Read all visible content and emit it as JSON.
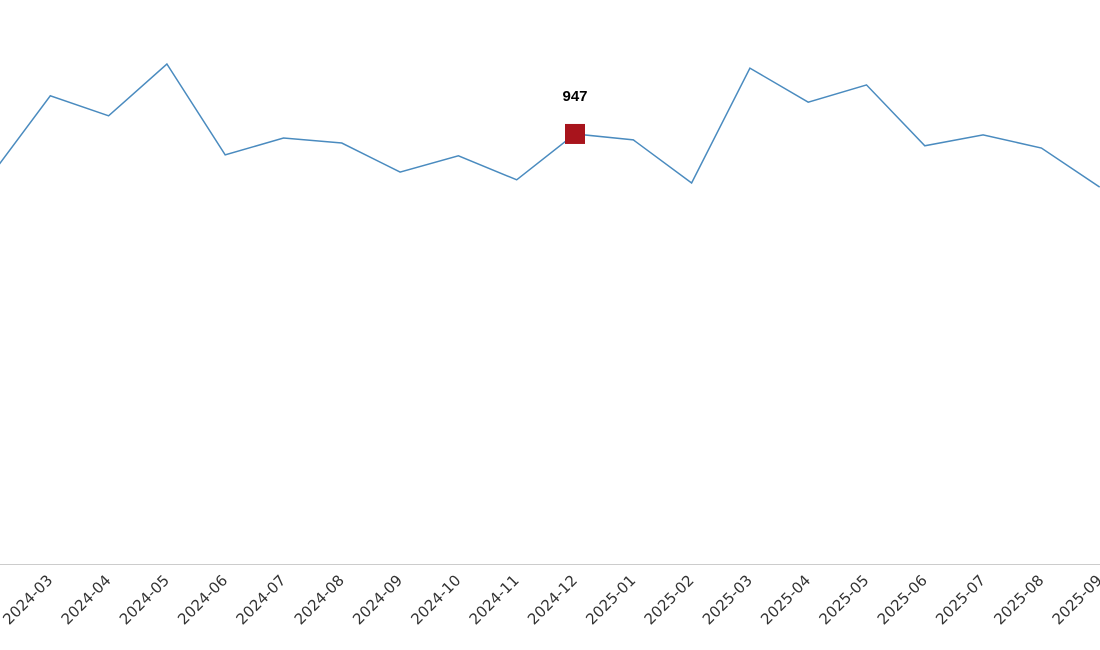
{
  "chart_data": {
    "type": "line",
    "categories": [
      null,
      "2024-03",
      "2024-04",
      "2024-05",
      "2024-06",
      "2024-07",
      "2024-08",
      "2024-09",
      "2024-10",
      "2024-11",
      "2024-12",
      "2025-01",
      "2025-02",
      "2025-03",
      "2025-04",
      "2025-05",
      "2025-06",
      "2025-07",
      "2025-08",
      "2025-09"
    ],
    "values": [
      859,
      1031,
      987,
      1101,
      901,
      938,
      927,
      863,
      899,
      846,
      947,
      934,
      839,
      1092,
      1017,
      1055,
      921,
      945,
      916,
      830
    ],
    "color": "#4a8bbf",
    "highlight_category": "2024-12",
    "highlight_color": "#a8141c",
    "ylim": [
      0,
      1242
    ]
  }
}
